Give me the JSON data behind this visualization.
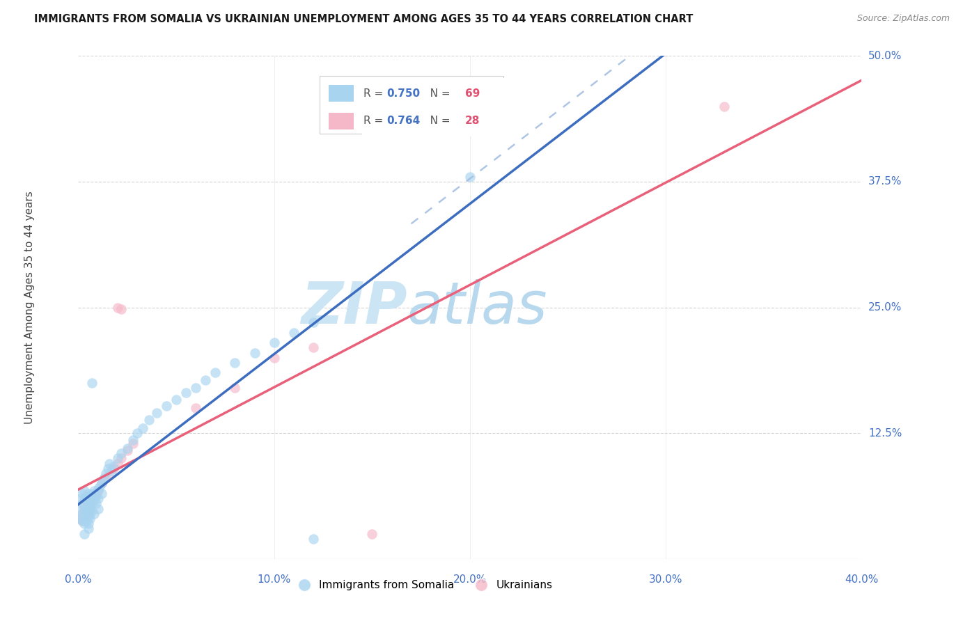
{
  "title": "IMMIGRANTS FROM SOMALIA VS UKRAINIAN UNEMPLOYMENT AMONG AGES 35 TO 44 YEARS CORRELATION CHART",
  "source": "Source: ZipAtlas.com",
  "ylabel": "Unemployment Among Ages 35 to 44 years",
  "xlim": [
    0.0,
    0.4
  ],
  "ylim": [
    0.0,
    0.5
  ],
  "ytick_vals": [
    0.0,
    0.125,
    0.25,
    0.375,
    0.5
  ],
  "ytick_labels": [
    "",
    "12.5%",
    "25.0%",
    "37.5%",
    "50.0%"
  ],
  "xtick_vals": [
    0.0,
    0.1,
    0.2,
    0.3,
    0.4
  ],
  "xtick_labels": [
    "0.0%",
    "10.0%",
    "20.0%",
    "30.0%",
    "40.0%"
  ],
  "somalia_color": "#a8d4f0",
  "ukraine_color": "#f5b8c8",
  "somalia_line_color": "#3d6dbf",
  "ukraine_line_color": "#e8607a",
  "dash_color": "#a0bce0",
  "somalia_R": "0.750",
  "somalia_N": "69",
  "ukraine_R": "0.764",
  "ukraine_N": "28",
  "watermark_zip": "ZIP",
  "watermark_atlas": "atlas",
  "watermark_color_zip": "#d8ecf8",
  "watermark_color_atlas": "#c8e0f0",
  "background": "#ffffff",
  "grid_color": "#d0d0d0",
  "tick_color": "#4472c4",
  "title_color": "#1a1a1a",
  "source_color": "#888888",
  "legend_border": "#cccccc",
  "somalia_x": [
    0.001,
    0.001,
    0.001,
    0.002,
    0.002,
    0.002,
    0.002,
    0.003,
    0.003,
    0.003,
    0.003,
    0.003,
    0.004,
    0.004,
    0.004,
    0.004,
    0.005,
    0.005,
    0.005,
    0.005,
    0.005,
    0.006,
    0.006,
    0.006,
    0.006,
    0.007,
    0.007,
    0.007,
    0.008,
    0.008,
    0.008,
    0.009,
    0.009,
    0.01,
    0.01,
    0.01,
    0.011,
    0.012,
    0.012,
    0.013,
    0.014,
    0.015,
    0.016,
    0.017,
    0.018,
    0.02,
    0.022,
    0.025,
    0.028,
    0.03,
    0.033,
    0.036,
    0.04,
    0.045,
    0.05,
    0.055,
    0.06,
    0.065,
    0.07,
    0.08,
    0.09,
    0.1,
    0.11,
    0.12,
    0.005,
    0.007,
    0.003,
    0.2,
    0.12
  ],
  "somalia_y": [
    0.05,
    0.06,
    0.04,
    0.055,
    0.065,
    0.045,
    0.038,
    0.06,
    0.05,
    0.042,
    0.035,
    0.068,
    0.055,
    0.048,
    0.038,
    0.062,
    0.058,
    0.048,
    0.035,
    0.065,
    0.042,
    0.06,
    0.052,
    0.045,
    0.04,
    0.065,
    0.055,
    0.048,
    0.068,
    0.058,
    0.045,
    0.062,
    0.055,
    0.07,
    0.06,
    0.05,
    0.072,
    0.075,
    0.065,
    0.08,
    0.085,
    0.09,
    0.095,
    0.088,
    0.092,
    0.1,
    0.105,
    0.11,
    0.118,
    0.125,
    0.13,
    0.138,
    0.145,
    0.152,
    0.158,
    0.165,
    0.17,
    0.178,
    0.185,
    0.195,
    0.205,
    0.215,
    0.225,
    0.235,
    0.03,
    0.175,
    0.025,
    0.38,
    0.02
  ],
  "ukraine_x": [
    0.001,
    0.002,
    0.002,
    0.003,
    0.003,
    0.004,
    0.005,
    0.005,
    0.006,
    0.007,
    0.008,
    0.009,
    0.01,
    0.012,
    0.015,
    0.018,
    0.02,
    0.022,
    0.025,
    0.028,
    0.02,
    0.022,
    0.06,
    0.08,
    0.1,
    0.12,
    0.15,
    0.33
  ],
  "ukraine_y": [
    0.04,
    0.045,
    0.038,
    0.052,
    0.042,
    0.048,
    0.055,
    0.045,
    0.05,
    0.058,
    0.062,
    0.065,
    0.068,
    0.075,
    0.082,
    0.09,
    0.095,
    0.1,
    0.108,
    0.115,
    0.25,
    0.248,
    0.15,
    0.17,
    0.2,
    0.21,
    0.025,
    0.45
  ],
  "somalia_slope": 0.96,
  "somalia_intercept": 0.025,
  "ukraine_slope": 0.93,
  "ukraine_intercept": 0.02
}
